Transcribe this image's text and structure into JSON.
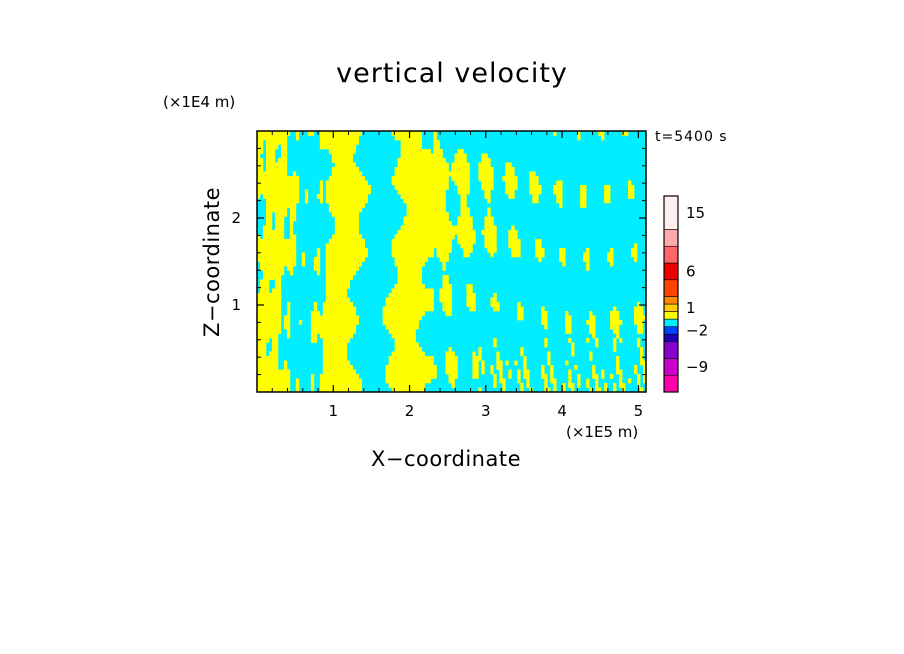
{
  "chart_data": {
    "type": "heatmap",
    "title": "vertical velocity",
    "xlabel": "X−coordinate",
    "ylabel": "Z−coordinate",
    "x_scale_label": "(×1E5 m)",
    "y_scale_label": "(×1E4 m)",
    "time_label": "t=5400 s",
    "xlim": [
      0,
      5.1
    ],
    "ylim": [
      0,
      3.0
    ],
    "x_ticks": [
      1,
      2,
      3,
      4,
      5
    ],
    "y_ticks": [
      1,
      2
    ],
    "field_colors": {
      "positive": "#ffff00",
      "negative": "#00eeff"
    },
    "colorbar": {
      "levels": [
        -12,
        -9,
        -6,
        -4,
        -2,
        -1,
        0,
        1,
        2,
        4,
        6,
        9,
        12,
        15,
        20
      ],
      "colors": [
        "#ff00aa",
        "#cc00cc",
        "#8800cc",
        "#2200bb",
        "#0044ff",
        "#00eeff",
        "#ffff00",
        "#ffcc00",
        "#ff8800",
        "#ff4400",
        "#ee0000",
        "#ff6666",
        "#ffaaaa",
        "#ffeeee"
      ],
      "tick_labels": [
        {
          "value": 15,
          "label": "15"
        },
        {
          "value": 6,
          "label": "6"
        },
        {
          "value": 1,
          "label": "1"
        },
        {
          "value": -2,
          "label": "−2"
        },
        {
          "value": -9,
          "label": "−9"
        }
      ]
    }
  }
}
